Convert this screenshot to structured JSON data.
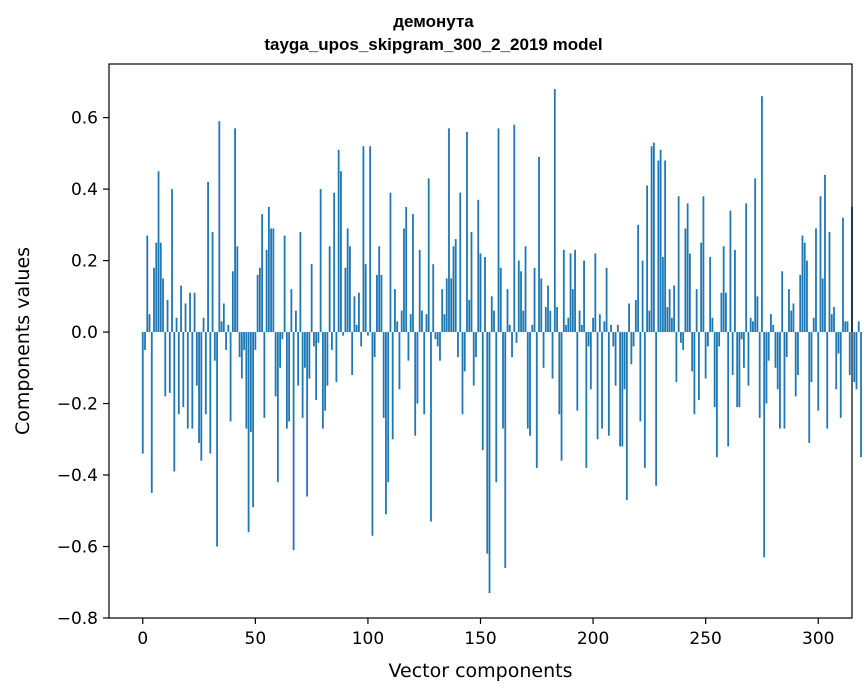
{
  "chart_data": {
    "type": "bar",
    "title_lines": [
      "демонута",
      "tayga_upos_skipgram_300_2_2019 model"
    ],
    "xlabel": "Vector components",
    "ylabel": "Components values",
    "xlim": [
      -15,
      315
    ],
    "ylim": [
      -0.8,
      0.75
    ],
    "xticks": [
      0,
      50,
      100,
      150,
      200,
      250,
      300
    ],
    "xtick_labels": [
      "0",
      "50",
      "100",
      "150",
      "200",
      "250",
      "300"
    ],
    "yticks": [
      -0.8,
      -0.6,
      -0.4,
      -0.2,
      0.0,
      0.2,
      0.4,
      0.6
    ],
    "ytick_labels": [
      "−0.8",
      "−0.6",
      "−0.4",
      "−0.2",
      "0.0",
      "0.2",
      "0.4",
      "0.6"
    ],
    "bar_color": "#1f77b4",
    "grid": false,
    "values": [
      -0.34,
      -0.05,
      0.27,
      0.05,
      -0.45,
      0.18,
      0.25,
      0.45,
      0.25,
      0.15,
      -0.18,
      0.09,
      -0.17,
      0.4,
      -0.39,
      0.04,
      -0.23,
      0.13,
      -0.21,
      0.08,
      -0.27,
      0.11,
      -0.27,
      0.11,
      -0.15,
      -0.31,
      -0.36,
      0.04,
      -0.23,
      0.42,
      -0.34,
      0.28,
      -0.08,
      -0.6,
      0.59,
      0.03,
      0.08,
      -0.05,
      0.02,
      -0.25,
      0.17,
      0.57,
      0.24,
      -0.07,
      -0.13,
      -0.05,
      -0.27,
      -0.56,
      -0.28,
      -0.49,
      -0.05,
      0.16,
      0.18,
      0.33,
      -0.24,
      0.23,
      0.35,
      0.29,
      0.29,
      -0.18,
      -0.42,
      -0.1,
      -0.02,
      0.27,
      -0.27,
      -0.25,
      0.12,
      -0.61,
      0.06,
      -0.15,
      0.28,
      -0.24,
      -0.1,
      -0.46,
      -0.13,
      0.19,
      -0.04,
      -0.19,
      -0.03,
      0.4,
      -0.27,
      -0.22,
      -0.15,
      0.24,
      -0.05,
      0.39,
      -0.14,
      0.51,
      0.45,
      -0.01,
      0.18,
      0.29,
      0.24,
      -0.12,
      0.1,
      0.02,
      0.11,
      -0.04,
      0.52,
      0.19,
      -0.01,
      0.52,
      -0.57,
      -0.07,
      0.16,
      0.24,
      0.16,
      -0.24,
      -0.51,
      -0.42,
      0.39,
      -0.3,
      0.12,
      0.03,
      -0.16,
      0.06,
      0.29,
      0.35,
      -0.08,
      0.05,
      0.33,
      -0.29,
      -0.2,
      0.23,
      0.06,
      -0.23,
      0.05,
      0.43,
      -0.53,
      0.19,
      -0.02,
      -0.04,
      -0.08,
      0.12,
      0.05,
      0.15,
      0.57,
      0.15,
      0.24,
      0.26,
      -0.07,
      0.39,
      -0.23,
      -0.11,
      0.56,
      0.09,
      0.28,
      -0.15,
      -0.07,
      0.37,
      0.22,
      -0.33,
      0.21,
      -0.62,
      -0.73,
      0.1,
      0.06,
      -0.42,
      0.57,
      0.18,
      -0.27,
      -0.66,
      0.12,
      0.02,
      -0.07,
      0.58,
      -0.03,
      0.2,
      0.17,
      0.06,
      0.24,
      -0.27,
      -0.29,
      0.02,
      0.18,
      -0.38,
      0.49,
      0.15,
      -0.1,
      0.07,
      0.13,
      0.06,
      -0.13,
      0.68,
      0.07,
      -0.23,
      -0.36,
      0.23,
      0.02,
      0.04,
      0.22,
      0.12,
      0.23,
      -0.22,
      0.06,
      0.02,
      0.2,
      -0.38,
      -0.04,
      -0.16,
      0.04,
      0.22,
      -0.3,
      0.05,
      -0.27,
      0.03,
      0.18,
      -0.29,
      0.02,
      -0.04,
      -0.15,
      0.02,
      -0.32,
      -0.32,
      -0.16,
      -0.47,
      0.08,
      -0.09,
      -0.04,
      0.09,
      0.3,
      -0.25,
      0.2,
      -0.38,
      0.41,
      0.06,
      0.52,
      0.53,
      -0.43,
      0.48,
      0.51,
      0.21,
      0.48,
      0.07,
      0.12,
      0.04,
      0.13,
      -0.14,
      0.38,
      -0.03,
      -0.05,
      0.29,
      0.36,
      0.22,
      -0.11,
      -0.23,
      0.12,
      -0.19,
      0.25,
      0.38,
      -0.13,
      -0.04,
      0.21,
      0.04,
      -0.21,
      -0.35,
      -0.04,
      0.11,
      0.24,
      0.11,
      -0.32,
      0.34,
      -0.12,
      0.23,
      -0.21,
      -0.21,
      -0.02,
      -0.1,
      0.36,
      -0.15,
      0.04,
      0.03,
      0.43,
      0.1,
      -0.24,
      0.66,
      -0.63,
      -0.2,
      -0.08,
      0.05,
      0.02,
      -0.1,
      -0.16,
      -0.27,
      0.17,
      -0.27,
      -0.07,
      0.12,
      0.06,
      0.08,
      -0.18,
      -0.12,
      0.16,
      0.27,
      0.25,
      0.2,
      -0.31,
      -0.14,
      0.04,
      0.29,
      -0.22,
      0.38,
      0.15,
      0.44,
      -0.27,
      0.28,
      0.05,
      0.07,
      -0.16,
      -0.06,
      -0.24,
      0.32,
      0.03,
      0.03,
      -0.12,
      0.35,
      -0.14,
      -0.16,
      0.03,
      -0.35
    ]
  }
}
